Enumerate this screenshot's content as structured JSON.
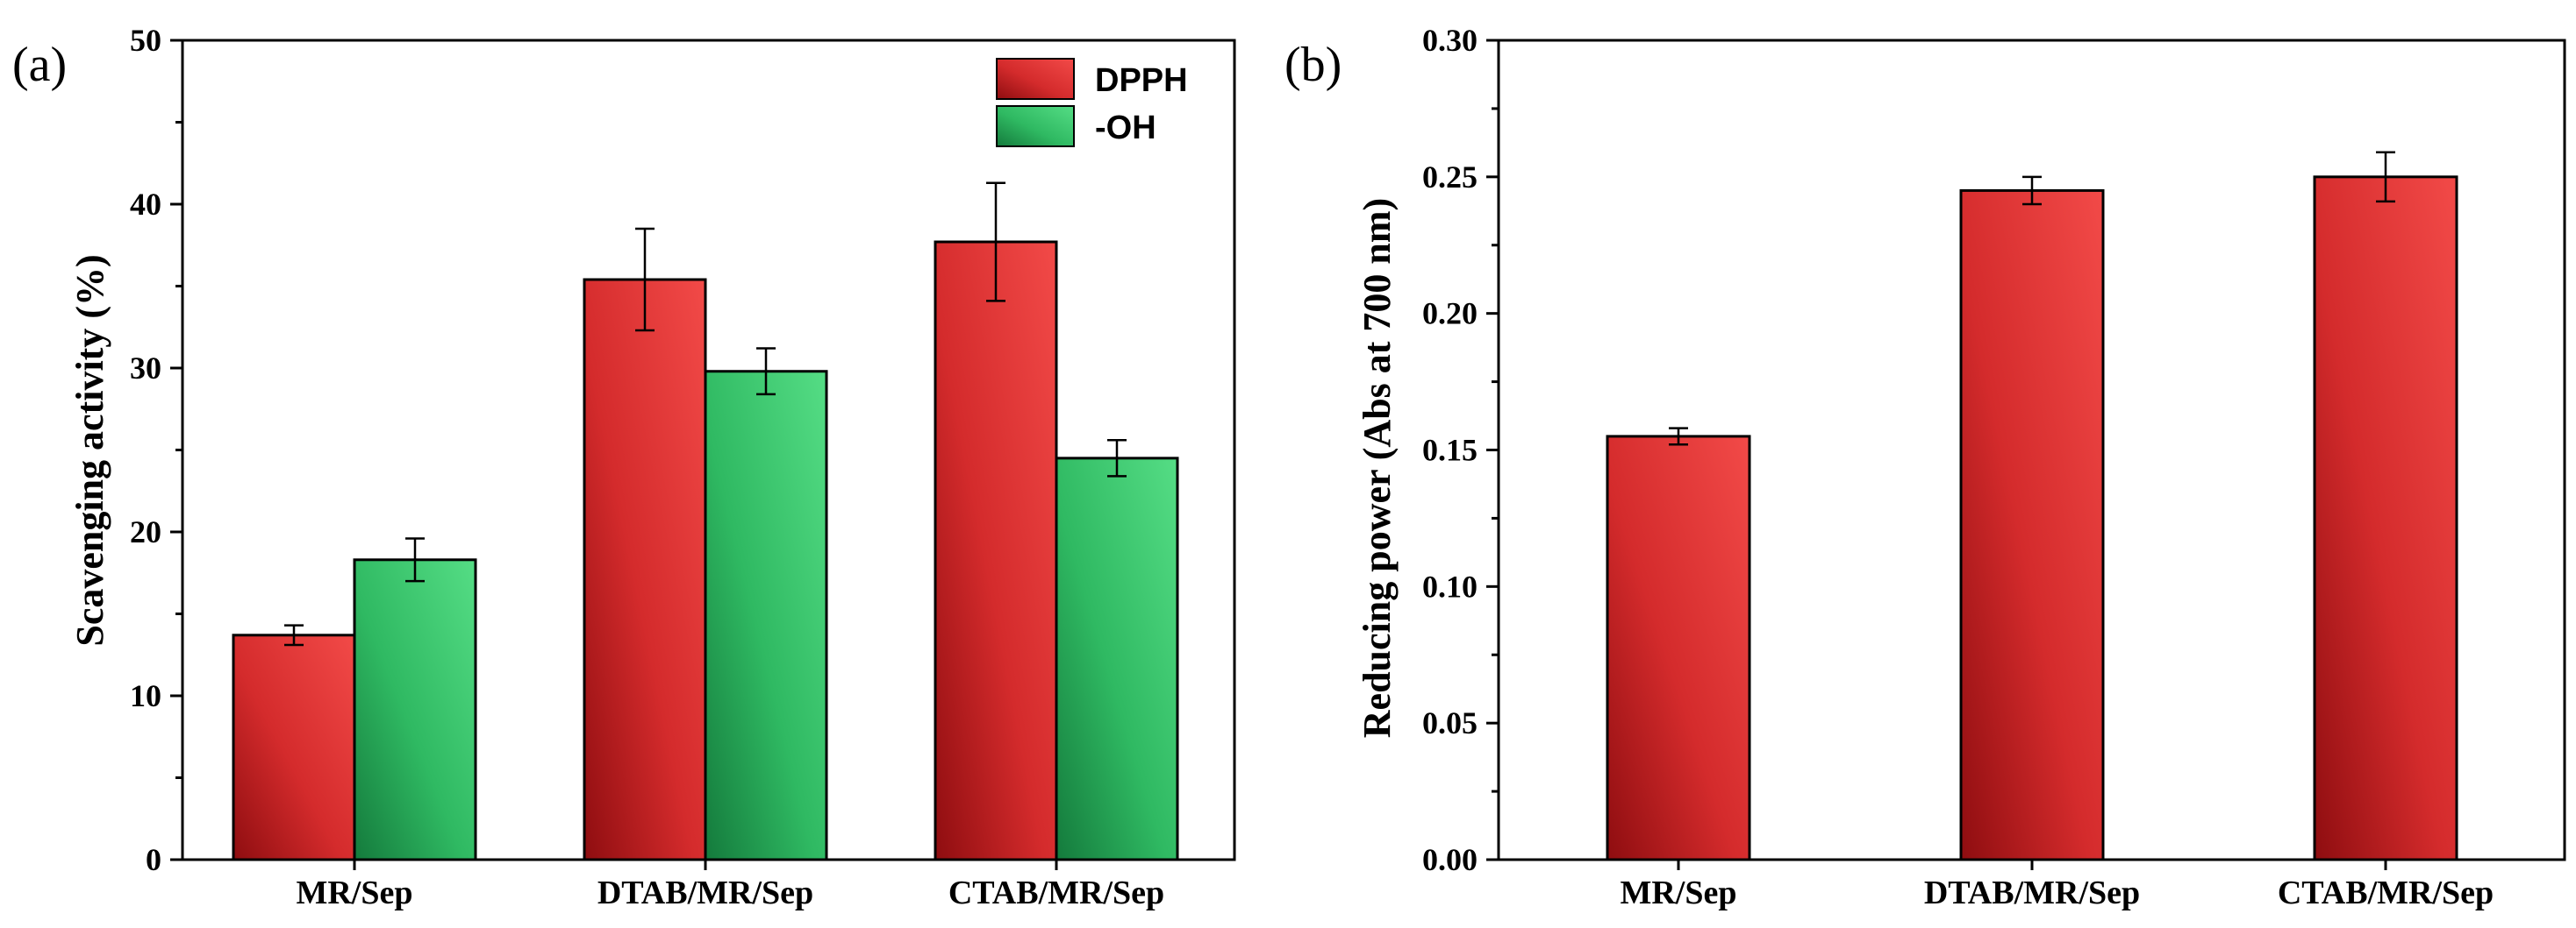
{
  "chart_data": [
    {
      "type": "bar",
      "panel_label": "(a)",
      "ylabel": "Scavenging activity (%)",
      "xlabel": "",
      "ylim": [
        0,
        50
      ],
      "yticks": [
        "0",
        "10",
        "20",
        "30",
        "40",
        "50"
      ],
      "categories": [
        "MR/Sep",
        "DTAB/MR/Sep",
        "CTAB/MR/Sep"
      ],
      "legend_position": "top-right",
      "series": [
        {
          "name": "DPPH",
          "color": "#e8403f",
          "values": [
            13.7,
            35.4,
            37.7
          ],
          "errors": [
            0.6,
            3.1,
            3.6
          ]
        },
        {
          "name": "-OH",
          "color": "#3ecf70",
          "values": [
            18.3,
            29.8,
            24.5
          ],
          "errors": [
            1.3,
            1.4,
            1.1
          ]
        }
      ]
    },
    {
      "type": "bar",
      "panel_label": "(b)",
      "ylabel": "Reducing power (Abs at 700 nm)",
      "xlabel": "",
      "ylim": [
        0,
        0.3
      ],
      "yticks": [
        "0.00",
        "0.05",
        "0.10",
        "0.15",
        "0.20",
        "0.25",
        "0.30"
      ],
      "categories": [
        "MR/Sep",
        "DTAB/MR/Sep",
        "CTAB/MR/Sep"
      ],
      "series": [
        {
          "name": "Reducing power",
          "color": "#e8403f",
          "values": [
            0.155,
            0.245,
            0.25
          ],
          "errors": [
            0.003,
            0.005,
            0.009
          ]
        }
      ]
    }
  ]
}
